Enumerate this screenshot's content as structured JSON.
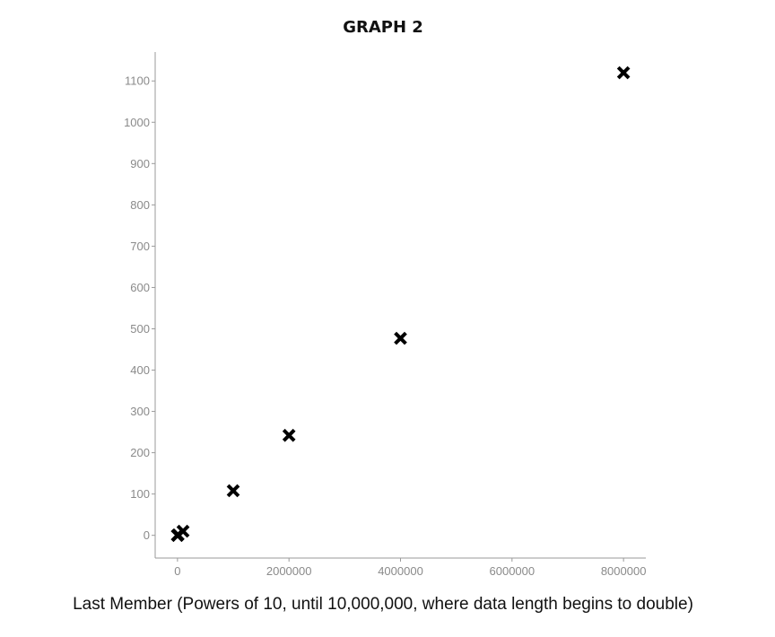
{
  "chart_data": {
    "type": "scatter",
    "title": "GRAPH 2",
    "xlabel": "Last Member (Powers of 10, until 10,000,000, where data length begins to double)",
    "ylabel": "",
    "xlim": [
      -400000,
      8400000
    ],
    "ylim": [
      -55,
      1170
    ],
    "xticks": [
      0,
      2000000,
      4000000,
      6000000,
      8000000
    ],
    "xtick_labels": [
      "0",
      "2000000",
      "4000000",
      "6000000",
      "8000000"
    ],
    "yticks": [
      0,
      100,
      200,
      300,
      400,
      500,
      600,
      700,
      800,
      900,
      1000,
      1100
    ],
    "ytick_labels": [
      "0",
      "100",
      "200",
      "300",
      "400",
      "500",
      "600",
      "700",
      "800",
      "900",
      "1000",
      "1100"
    ],
    "marker": "x",
    "color": "#000000",
    "grid": false,
    "legend": false,
    "series": [
      {
        "x": [
          10,
          100,
          1000,
          10000,
          100000,
          1000000,
          2000000,
          4000000,
          8000000
        ],
        "y": [
          0,
          0,
          0,
          1,
          10,
          108,
          242,
          477,
          1120
        ]
      }
    ]
  }
}
